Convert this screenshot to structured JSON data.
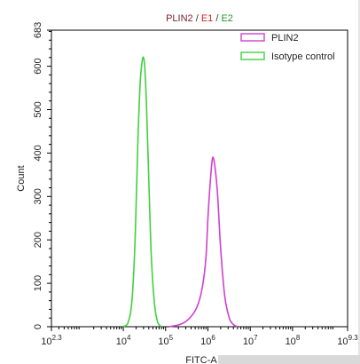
{
  "chart_data": {
    "type": "line",
    "title_parts": [
      {
        "text": "PLIN2",
        "color": "#7a1f2b"
      },
      {
        "text": " / ",
        "color": "#333333"
      },
      {
        "text": "E1",
        "color": "#d42020"
      },
      {
        "text": " / ",
        "color": "#333333"
      },
      {
        "text": "E2",
        "color": "#1f9a2a"
      }
    ],
    "xlabel": "FITC-A",
    "ylabel": "Count",
    "x_scale": "log10",
    "xlim": [
      200,
      2000000000
    ],
    "ylim": [
      0,
      683
    ],
    "x_ticks": [
      {
        "value": 200,
        "base": "10",
        "exp": "2.3"
      },
      {
        "value": 10000,
        "base": "10",
        "exp": "4"
      },
      {
        "value": 100000,
        "base": "10",
        "exp": "5"
      },
      {
        "value": 1000000,
        "base": "10",
        "exp": "6"
      },
      {
        "value": 10000000,
        "base": "10",
        "exp": "7"
      },
      {
        "value": 100000000,
        "base": "10",
        "exp": "8"
      },
      {
        "value": 2000000000,
        "base": "10",
        "exp": "9.3"
      }
    ],
    "y_ticks": [
      0,
      100,
      200,
      300,
      400,
      500,
      600,
      683
    ],
    "legend_position": "top-right",
    "series": [
      {
        "name": "PLIN2",
        "color": "#d040d0",
        "x": [
          120000,
          200000,
          300000,
          450000,
          600000,
          750000,
          900000,
          1000000,
          1150000,
          1300000,
          1500000,
          1700000,
          2000000,
          2500000,
          3200000,
          4000000,
          5000000
        ],
        "y": [
          0,
          4,
          12,
          30,
          55,
          95,
          160,
          250,
          340,
          390,
          360,
          300,
          180,
          70,
          20,
          5,
          0
        ]
      },
      {
        "name": "Isotype control",
        "color": "#40d040",
        "x": [
          10000,
          13000,
          16000,
          19000,
          22000,
          25000,
          28000,
          30000,
          32000,
          35000,
          40000,
          46000,
          55000,
          65000,
          80000
        ],
        "y": [
          0,
          10,
          60,
          200,
          420,
          560,
          612,
          620,
          600,
          520,
          340,
          160,
          50,
          10,
          0
        ]
      }
    ]
  }
}
